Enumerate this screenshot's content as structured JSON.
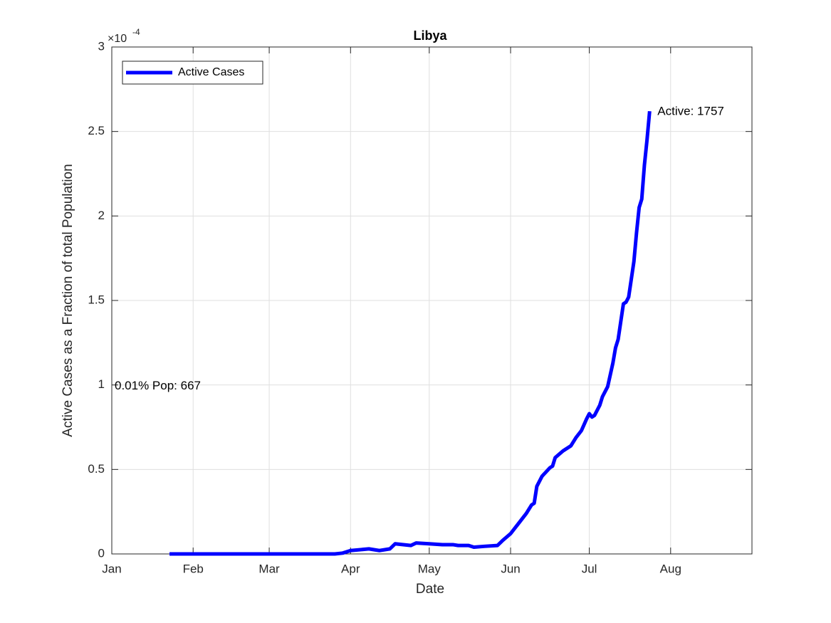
{
  "chart_data": {
    "type": "line",
    "title": "Libya",
    "xlabel": "Date",
    "ylabel": "Active Cases as a Fraction of total Population",
    "y_multiplier": "×10",
    "y_multiplier_exponent": "-4",
    "x": [
      22,
      85,
      88,
      91,
      98,
      102,
      106,
      108,
      114,
      116,
      121,
      126,
      130,
      132,
      136,
      138,
      142,
      147,
      149,
      152,
      155,
      158,
      160,
      161,
      162,
      164,
      167,
      168,
      169,
      172,
      175,
      177,
      179,
      181,
      182,
      183,
      184,
      186,
      187,
      189,
      191,
      192,
      193,
      195,
      196,
      197,
      199,
      200,
      201,
      202,
      203,
      204,
      205
    ],
    "series": [
      {
        "name": "Active Cases",
        "color": "#0000ff",
        "values": [
          0,
          0,
          0.005,
          0.02,
          0.03,
          0.02,
          0.03,
          0.06,
          0.05,
          0.065,
          0.06,
          0.055,
          0.055,
          0.05,
          0.05,
          0.04,
          0.045,
          0.05,
          0.08,
          0.12,
          0.18,
          0.24,
          0.29,
          0.3,
          0.4,
          0.46,
          0.51,
          0.52,
          0.57,
          0.61,
          0.64,
          0.69,
          0.73,
          0.8,
          0.83,
          0.81,
          0.82,
          0.88,
          0.93,
          0.99,
          1.13,
          1.22,
          1.27,
          1.48,
          1.49,
          1.52,
          1.73,
          1.9,
          2.05,
          2.1,
          2.3,
          2.45,
          2.62
        ]
      }
    ],
    "xlim": [
      0,
      244
    ],
    "xticks": [
      {
        "value": 0,
        "label": "Jan"
      },
      {
        "value": 31,
        "label": "Feb"
      },
      {
        "value": 60,
        "label": "Mar"
      },
      {
        "value": 91,
        "label": "Apr"
      },
      {
        "value": 121,
        "label": "May"
      },
      {
        "value": 152,
        "label": "Jun"
      },
      {
        "value": 182,
        "label": "Jul"
      },
      {
        "value": 213,
        "label": "Aug"
      }
    ],
    "ylim": [
      0,
      3
    ],
    "yticks": [
      0,
      0.5,
      1,
      1.5,
      2,
      2.5,
      3
    ],
    "grid": true,
    "legend": "upper left",
    "annotations": [
      "Active: 1757",
      "0.01% Pop: 667"
    ]
  }
}
